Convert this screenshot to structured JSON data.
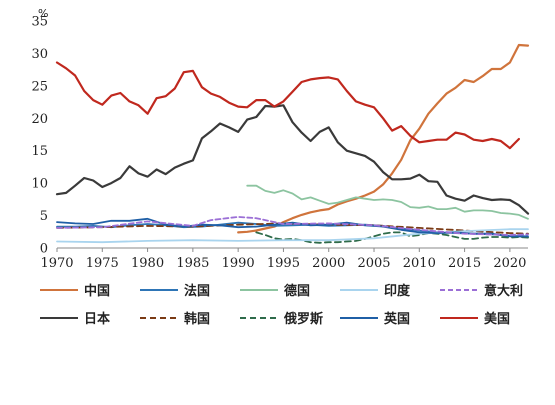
{
  "chart_data": {
    "type": "line",
    "unit": "%",
    "ylim": [
      0,
      35
    ],
    "yticks": [
      0,
      5,
      10,
      15,
      20,
      25,
      30,
      35
    ],
    "xlim": [
      1970,
      2022
    ],
    "xticks": [
      1970,
      1975,
      1980,
      1985,
      1990,
      1995,
      2000,
      2005,
      2010,
      2015,
      2020
    ],
    "grid": false,
    "legend_position": "bottom",
    "series": [
      {
        "name": "中国",
        "color": "#D0743C",
        "dash": "solid",
        "x": [
          1990,
          1991,
          1992,
          1993,
          1994,
          1995,
          1996,
          1997,
          1998,
          1999,
          2000,
          2001,
          2002,
          2003,
          2004,
          2005,
          2006,
          2007,
          2008,
          2009,
          2010,
          2011,
          2012,
          2013,
          2014,
          2015,
          2016,
          2017,
          2018,
          2019,
          2020,
          2021,
          2022
        ],
        "y": [
          2.4,
          2.5,
          2.7,
          3.0,
          3.3,
          4.0,
          4.6,
          5.1,
          5.5,
          5.8,
          6.0,
          6.7,
          7.2,
          7.6,
          8.1,
          8.7,
          9.8,
          11.5,
          13.6,
          16.6,
          18.4,
          20.7,
          22.3,
          23.8,
          24.7,
          25.9,
          25.6,
          26.5,
          27.6,
          27.6,
          28.6,
          31.3,
          31.2
        ]
      },
      {
        "name": "日本",
        "color": "#3A3A3A",
        "dash": "solid",
        "x": [
          1970,
          1971,
          1972,
          1973,
          1974,
          1975,
          1976,
          1977,
          1978,
          1979,
          1980,
          1981,
          1982,
          1983,
          1984,
          1985,
          1986,
          1987,
          1988,
          1989,
          1990,
          1991,
          1992,
          1993,
          1994,
          1995,
          1996,
          1997,
          1998,
          1999,
          2000,
          2001,
          2002,
          2003,
          2004,
          2005,
          2006,
          2007,
          2008,
          2009,
          2010,
          2011,
          2012,
          2013,
          2014,
          2015,
          2016,
          2017,
          2018,
          2019,
          2020,
          2021,
          2022
        ],
        "y": [
          8.3,
          8.5,
          9.6,
          10.8,
          10.4,
          9.4,
          10.0,
          10.8,
          12.6,
          11.5,
          11.0,
          12.1,
          11.4,
          12.4,
          13.0,
          13.5,
          16.9,
          18.0,
          19.2,
          18.6,
          17.9,
          19.8,
          20.2,
          21.9,
          21.8,
          22.0,
          19.4,
          17.8,
          16.5,
          17.9,
          18.6,
          16.3,
          15.0,
          14.6,
          14.2,
          13.3,
          11.7,
          10.6,
          10.6,
          10.7,
          11.3,
          10.3,
          10.2,
          8.1,
          7.6,
          7.3,
          8.1,
          7.7,
          7.4,
          7.5,
          7.4,
          6.6,
          5.3
        ]
      },
      {
        "name": "法国",
        "color": "#2E75B6",
        "dash": "solid",
        "x": [
          1970,
          1972,
          1974,
          1976,
          1978,
          1980,
          1982,
          1984,
          1986,
          1988,
          1990,
          1992,
          1994,
          1996,
          1998,
          2000,
          2002,
          2004,
          2006,
          2008,
          2010,
          2012,
          2014,
          2016,
          2018,
          2020,
          2022
        ],
        "y": [
          3.3,
          3.3,
          3.4,
          3.2,
          3.5,
          3.7,
          3.5,
          3.2,
          3.3,
          3.6,
          3.9,
          3.7,
          3.4,
          3.5,
          3.6,
          3.4,
          3.5,
          3.6,
          3.4,
          3.0,
          2.7,
          2.4,
          2.3,
          2.2,
          2.1,
          1.9,
          1.7
        ]
      },
      {
        "name": "韩国",
        "color": "#7A3A14",
        "dash": "6,4",
        "x": [
          1970,
          1975,
          1980,
          1985,
          1990,
          1995,
          2000,
          2005,
          2010,
          2015,
          2020,
          2022
        ],
        "y": [
          3.1,
          3.2,
          3.4,
          3.3,
          3.6,
          3.8,
          3.6,
          3.5,
          3.1,
          2.7,
          2.3,
          2.2
        ]
      },
      {
        "name": "德国",
        "color": "#8CC4A0",
        "dash": "solid",
        "x": [
          1991,
          1992,
          1993,
          1994,
          1995,
          1996,
          1997,
          1998,
          1999,
          2000,
          2001,
          2002,
          2003,
          2004,
          2005,
          2006,
          2007,
          2008,
          2009,
          2010,
          2011,
          2012,
          2013,
          2014,
          2015,
          2016,
          2017,
          2018,
          2019,
          2020,
          2021,
          2022
        ],
        "y": [
          9.6,
          9.6,
          8.8,
          8.5,
          8.9,
          8.4,
          7.5,
          7.8,
          7.3,
          6.8,
          7.0,
          7.4,
          7.8,
          7.6,
          7.4,
          7.5,
          7.4,
          7.1,
          6.3,
          6.2,
          6.4,
          6.0,
          6.0,
          6.2,
          5.6,
          5.8,
          5.8,
          5.7,
          5.4,
          5.3,
          5.1,
          4.5
        ]
      },
      {
        "name": "俄罗斯",
        "color": "#2E6B4A",
        "dash": "6,4",
        "x": [
          1992,
          1993,
          1994,
          1995,
          1996,
          1997,
          1998,
          1999,
          2000,
          2001,
          2002,
          2003,
          2004,
          2005,
          2006,
          2007,
          2008,
          2009,
          2010,
          2011,
          2012,
          2013,
          2014,
          2015,
          2016,
          2017,
          2018,
          2019,
          2020,
          2021,
          2022
        ],
        "y": [
          2.4,
          2.0,
          1.5,
          1.3,
          1.4,
          1.2,
          0.9,
          0.8,
          0.9,
          0.9,
          1.0,
          1.1,
          1.4,
          1.8,
          2.2,
          2.4,
          2.4,
          1.8,
          2.0,
          2.3,
          2.2,
          2.0,
          1.7,
          1.4,
          1.4,
          1.6,
          1.7,
          1.7,
          1.6,
          1.7,
          1.6
        ]
      },
      {
        "name": "印度",
        "color": "#A9D4EE",
        "dash": "solid",
        "x": [
          1970,
          1975,
          1980,
          1985,
          1990,
          1995,
          2000,
          2005,
          2010,
          2015,
          2020,
          2022
        ],
        "y": [
          1.0,
          0.9,
          1.1,
          1.2,
          1.1,
          1.2,
          1.2,
          1.5,
          2.2,
          2.6,
          2.9,
          2.9
        ]
      },
      {
        "name": "英国",
        "color": "#1F5FA6",
        "dash": "solid",
        "x": [
          1970,
          1972,
          1974,
          1976,
          1978,
          1980,
          1982,
          1984,
          1986,
          1988,
          1990,
          1992,
          1994,
          1996,
          1998,
          2000,
          2002,
          2004,
          2006,
          2008,
          2010,
          2012,
          2014,
          2016,
          2018,
          2020,
          2022
        ],
        "y": [
          4.0,
          3.8,
          3.7,
          4.2,
          4.2,
          4.5,
          3.6,
          3.3,
          3.6,
          3.5,
          3.2,
          3.3,
          3.6,
          3.9,
          3.5,
          3.6,
          3.9,
          3.5,
          3.3,
          2.8,
          2.4,
          2.3,
          2.4,
          2.2,
          2.2,
          1.8,
          1.8
        ]
      },
      {
        "name": "意大利",
        "color": "#9B6FD6",
        "dash": "5,3",
        "x": [
          1970,
          1975,
          1980,
          1985,
          1987,
          1990,
          1992,
          1995,
          2000,
          2005,
          2010,
          2015,
          2020,
          2022
        ],
        "y": [
          3.1,
          3.2,
          4.1,
          3.4,
          4.3,
          4.8,
          4.6,
          3.7,
          3.8,
          3.5,
          2.8,
          2.2,
          2.0,
          2.1
        ]
      },
      {
        "name": "美国",
        "color": "#C0281E",
        "dash": "solid",
        "x": [
          1970,
          1971,
          1972,
          1973,
          1974,
          1975,
          1976,
          1977,
          1978,
          1979,
          1980,
          1981,
          1982,
          1983,
          1984,
          1985,
          1986,
          1987,
          1988,
          1989,
          1990,
          1991,
          1992,
          1993,
          1994,
          1995,
          1996,
          1997,
          1998,
          1999,
          2000,
          2001,
          2002,
          2003,
          2004,
          2005,
          2006,
          2007,
          2008,
          2009,
          2010,
          2011,
          2012,
          2013,
          2014,
          2015,
          2016,
          2017,
          2018,
          2019,
          2020,
          2021,
          2022
        ],
        "y": [
          28.6,
          27.7,
          26.6,
          24.2,
          22.8,
          22.1,
          23.5,
          23.9,
          22.6,
          22.0,
          20.7,
          23.1,
          23.4,
          24.6,
          27.1,
          27.3,
          24.8,
          23.8,
          23.3,
          22.4,
          21.8,
          21.7,
          22.8,
          22.8,
          21.8,
          22.6,
          24.1,
          25.6,
          26.0,
          26.2,
          26.3,
          26.0,
          24.2,
          22.6,
          22.1,
          21.7,
          20.0,
          18.1,
          18.8,
          17.3,
          16.3,
          16.5,
          16.7,
          16.7,
          17.8,
          17.5,
          16.7,
          16.5,
          16.8,
          16.5,
          15.4,
          16.8,
          null
        ]
      }
    ],
    "legend": [
      {
        "name": "中国",
        "color": "#D0743C",
        "dash": "solid"
      },
      {
        "name": "法国",
        "color": "#2E75B6",
        "dash": "solid"
      },
      {
        "name": "德国",
        "color": "#8CC4A0",
        "dash": "solid"
      },
      {
        "name": "印度",
        "color": "#A9D4EE",
        "dash": "solid"
      },
      {
        "name": "意大利",
        "color": "#9B6FD6",
        "dash": "5,3"
      },
      {
        "name": "日本",
        "color": "#3A3A3A",
        "dash": "solid"
      },
      {
        "name": "韩国",
        "color": "#7A3A14",
        "dash": "6,4"
      },
      {
        "name": "俄罗斯",
        "color": "#2E6B4A",
        "dash": "6,4"
      },
      {
        "name": "英国",
        "color": "#1F5FA6",
        "dash": "solid"
      },
      {
        "name": "美国",
        "color": "#C0281E",
        "dash": "solid"
      }
    ]
  }
}
